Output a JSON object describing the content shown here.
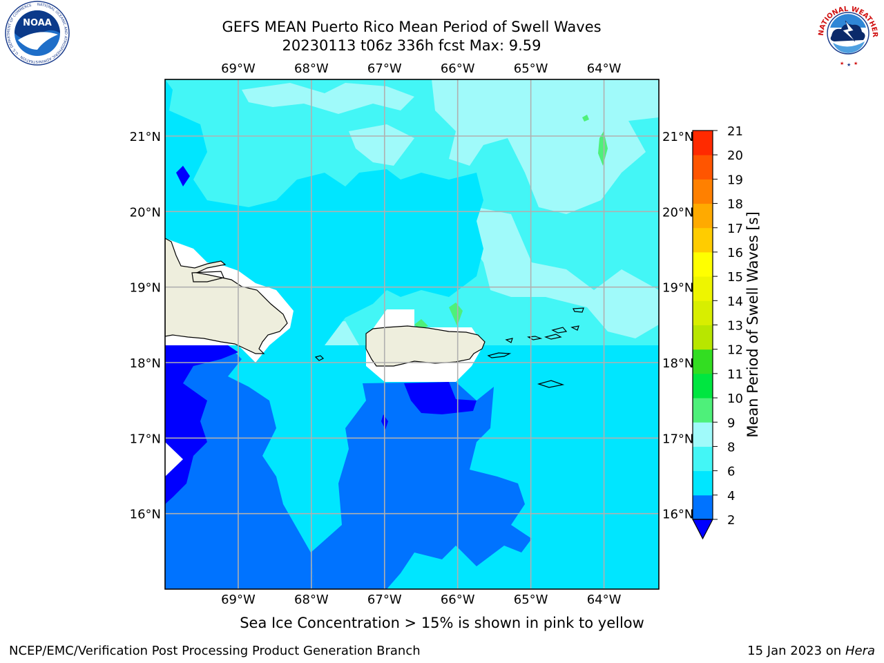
{
  "title": {
    "line1": "GEFS MEAN Puerto Rico Mean Period of Swell Waves",
    "line2": "20230113 t06z 336h fcst   Max: 9.59"
  },
  "logos": {
    "left": {
      "text": "NOAA",
      "ring_text": "NATIONAL OCEANIC AND ATMOSPHERIC ADMINISTRATION · U.S. DEPARTMENT OF COMMERCE"
    },
    "right": {
      "ring_text": "NATIONAL WEATHER SERVICE"
    }
  },
  "map": {
    "lon_labels": [
      "69°W",
      "68°W",
      "67°W",
      "66°W",
      "65°W",
      "64°W"
    ],
    "lat_labels": [
      "21°N",
      "20°N",
      "19°N",
      "18°N",
      "17°N",
      "16°N"
    ],
    "lon_range": [
      -70.0,
      -63.25
    ],
    "lat_range": [
      15.0,
      21.75
    ],
    "colors": {
      "land": "#eeeedd",
      "grid": "#b0b0b0",
      "bins": [
        {
          "range": [
            2,
            4
          ],
          "color": "#0073ff"
        },
        {
          "range": [
            4,
            6
          ],
          "color": "#00e6ff"
        },
        {
          "range": [
            6,
            8
          ],
          "color": "#43f6f6"
        },
        {
          "range": [
            8,
            9
          ],
          "color": "#a0fafa"
        },
        {
          "range": [
            9,
            10
          ],
          "color": "#4ef07a"
        },
        {
          "range": [
            10,
            11
          ],
          "color": "#00e640"
        },
        {
          "range": [
            11,
            12
          ],
          "color": "#33dd22"
        },
        {
          "range": [
            12,
            13
          ],
          "color": "#b8e600"
        },
        {
          "range": [
            13,
            14
          ],
          "color": "#d8ee00"
        },
        {
          "range": [
            14,
            15
          ],
          "color": "#eef500"
        },
        {
          "range": [
            15,
            16
          ],
          "color": "#ffff00"
        },
        {
          "range": [
            16,
            17
          ],
          "color": "#ffcc00"
        },
        {
          "range": [
            17,
            18
          ],
          "color": "#ffaa00"
        },
        {
          "range": [
            18,
            19
          ],
          "color": "#ff8000"
        },
        {
          "range": [
            19,
            20
          ],
          "color": "#ff5500"
        },
        {
          "range": [
            20,
            21
          ],
          "color": "#ff2a00"
        }
      ],
      "under": "#0000ff"
    }
  },
  "colorbar": {
    "label": "Mean Period of Swell Waves [s]",
    "ticks": [
      "2",
      "4",
      "6",
      "8",
      "9",
      "10",
      "11",
      "12",
      "13",
      "14",
      "15",
      "16",
      "17",
      "18",
      "19",
      "20",
      "21"
    ]
  },
  "caption": "Sea Ice Concentration > 15% is shown in pink to yellow",
  "footer": {
    "left": "NCEP/EMC/Verification Post Processing Product Generation Branch",
    "right_prefix": "15 Jan 2023 on ",
    "right_machine": "Hera"
  }
}
